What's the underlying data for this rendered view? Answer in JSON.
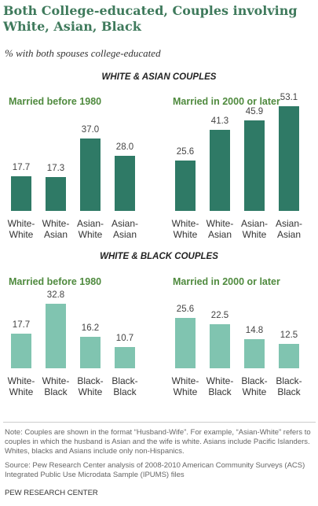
{
  "title": "Both College-educated, Couples involving White, Asian, Black",
  "subtitle": "% with both spouses college-educated",
  "sections": [
    "WHITE & ASIAN COUPLES",
    "WHITE & BLACK COUPLES"
  ],
  "chart_data": [
    {
      "type": "bar",
      "title": "Married before 1980",
      "categories": [
        "White-White",
        "White-Asian",
        "Asian-White",
        "Asian-Asian"
      ],
      "values": [
        17.7,
        17.3,
        37.0,
        28.0
      ],
      "value_labels": [
        "17.7",
        "17.3",
        "37.0",
        "28.0"
      ],
      "color": "#2f7a66"
    },
    {
      "type": "bar",
      "title": "Married in 2000 or later",
      "categories": [
        "White-White",
        "White-Asian",
        "Asian-White",
        "Asian-Asian"
      ],
      "values": [
        25.6,
        41.3,
        45.9,
        53.1
      ],
      "value_labels": [
        "25.6",
        "41.3",
        "45.9",
        "53.1"
      ],
      "color": "#2f7a66"
    },
    {
      "type": "bar",
      "title": "Married before 1980",
      "categories": [
        "White-White",
        "White-Black",
        "Black-White",
        "Black-Black"
      ],
      "values": [
        17.7,
        32.8,
        16.2,
        10.7
      ],
      "value_labels": [
        "17.7",
        "32.8",
        "16.2",
        "10.7"
      ],
      "color": "#80c4b0"
    },
    {
      "type": "bar",
      "title": "Married in 2000 or later",
      "categories": [
        "White-White",
        "White-Black",
        "Black-White",
        "Black-Black"
      ],
      "values": [
        25.6,
        22.5,
        14.8,
        12.5
      ],
      "value_labels": [
        "25.6",
        "22.5",
        "14.8",
        "12.5"
      ],
      "color": "#80c4b0"
    }
  ],
  "note": "Note: Couples are shown in the format “Husband-Wife”. For example, “Asian-White” refers to couples in which the husband is Asian and the wife is white. Asians include Pacific Islanders. Whites, blacks and Asians include only non-Hispanics.",
  "source": "Source: Pew Research Center analysis of 2008-2010 American Community Surveys (ACS) Integrated Public Use Microdata Sample (IPUMS) files",
  "credit": "PEW RESEARCH CENTER"
}
